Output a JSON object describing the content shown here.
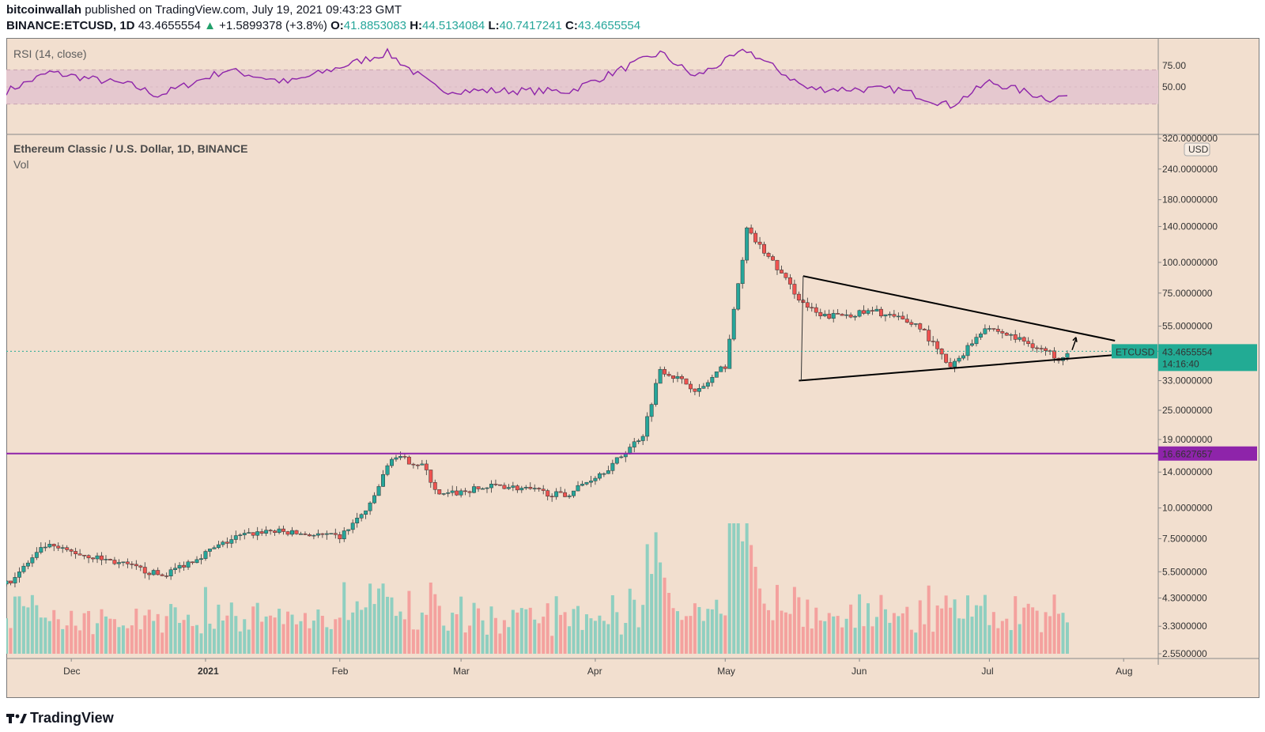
{
  "header": {
    "author": "bitcoinwallah",
    "published_text": "published on TradingView.com, July 19, 2021 09:43:23 GMT",
    "symbol": "BINANCE:ETCUSD, 1D",
    "last": "43.4655554",
    "change_arrow": "▲",
    "change": "+1.5899378 (+3.8%)",
    "o_label": "O:",
    "o": "41.8853083",
    "h_label": "H:",
    "h": "44.5134084",
    "l_label": "L:",
    "l": "40.7417241",
    "c_label": "C:",
    "c": "43.4655554"
  },
  "rsi_panel": {
    "title": "RSI (14, close)",
    "ticks": [
      "75.00",
      "50.00"
    ]
  },
  "price_panel": {
    "title": "Ethereum Classic / U.S. Dollar, 1D, BINANCE",
    "volume_label": "Vol",
    "currency": "USD",
    "symbol_tag": "ETCUSD",
    "last_price_label": "43.4655554",
    "countdown": "14:16:40",
    "support_level_label": "16.6627657",
    "y_ticks": [
      "320.0000000",
      "240.0000000",
      "180.0000000",
      "140.0000000",
      "100.0000000",
      "75.0000000",
      "55.0000000",
      "33.0000000",
      "25.0000000",
      "19.0000000",
      "14.0000000",
      "10.0000000",
      "7.5000000",
      "5.5000000",
      "4.3000000",
      "3.3000000",
      "2.5500000"
    ],
    "x_ticks": [
      "Dec",
      "2021",
      "Feb",
      "Mar",
      "Apr",
      "May",
      "Jun",
      "Jul",
      "Aug"
    ]
  },
  "colors": {
    "background": "#f2dfcf",
    "up": "#26a69a",
    "down": "#ef5350",
    "rsi_line": "#8e24aa",
    "rsi_band": "#e5c8cf",
    "support_line": "#8e24aa",
    "trendline": "#000000",
    "last_price": "#22ab94"
  },
  "footer": {
    "brand": "TradingView"
  },
  "chart_data": {
    "type": "candlestick",
    "title": "Ethereum Classic / U.S. Dollar, 1D, BINANCE",
    "y_scale": "log",
    "ylim": [
      2.5,
      320
    ],
    "x_range": [
      "2020-11-16",
      "2021-08-09"
    ],
    "anchors": [
      {
        "date": "2020-11-16",
        "close": 4.9
      },
      {
        "date": "2020-11-25",
        "close": 7.0
      },
      {
        "date": "2020-12-10",
        "close": 6.1
      },
      {
        "date": "2020-12-22",
        "close": 5.3
      },
      {
        "date": "2021-01-08",
        "close": 7.6
      },
      {
        "date": "2021-01-15",
        "close": 8.1
      },
      {
        "date": "2021-02-01",
        "close": 7.6
      },
      {
        "date": "2021-02-08",
        "close": 10.2
      },
      {
        "date": "2021-02-13",
        "close": 16.2
      },
      {
        "date": "2021-02-20",
        "close": 15.0
      },
      {
        "date": "2021-02-24",
        "close": 11.2
      },
      {
        "date": "2021-03-10",
        "close": 12.4
      },
      {
        "date": "2021-03-25",
        "close": 11.2
      },
      {
        "date": "2021-04-05",
        "close": 15.0
      },
      {
        "date": "2021-04-12",
        "close": 20.0
      },
      {
        "date": "2021-04-16",
        "close": 37.0
      },
      {
        "date": "2021-04-25",
        "close": 30.0
      },
      {
        "date": "2021-05-01",
        "close": 38.0
      },
      {
        "date": "2021-05-06",
        "close": 135.0
      },
      {
        "date": "2021-05-12",
        "close": 100.0
      },
      {
        "date": "2021-05-19",
        "close": 68.0
      },
      {
        "date": "2021-05-23",
        "close": 60.0
      },
      {
        "date": "2021-06-05",
        "close": 63.0
      },
      {
        "date": "2021-06-15",
        "close": 55.0
      },
      {
        "date": "2021-06-22",
        "close": 37.0
      },
      {
        "date": "2021-06-30",
        "close": 55.0
      },
      {
        "date": "2021-07-10",
        "close": 47.0
      },
      {
        "date": "2021-07-17",
        "close": 41.0
      },
      {
        "date": "2021-07-19",
        "close": 43.47
      }
    ],
    "volume_peaks": [
      {
        "date": "2021-04-16",
        "relative": 0.7
      },
      {
        "date": "2021-05-06",
        "relative": 1.0
      }
    ],
    "rsi": {
      "levels": [
        70,
        30
      ],
      "ticks": [
        75,
        50
      ],
      "anchors": [
        {
          "date": "2020-11-16",
          "value": 45
        },
        {
          "date": "2020-11-26",
          "value": 67
        },
        {
          "date": "2020-12-15",
          "value": 52
        },
        {
          "date": "2020-12-21",
          "value": 40
        },
        {
          "date": "2021-01-06",
          "value": 70
        },
        {
          "date": "2021-01-20",
          "value": 55
        },
        {
          "date": "2021-02-12",
          "value": 90
        },
        {
          "date": "2021-02-24",
          "value": 46
        },
        {
          "date": "2021-03-26",
          "value": 45
        },
        {
          "date": "2021-04-16",
          "value": 90
        },
        {
          "date": "2021-04-24",
          "value": 62
        },
        {
          "date": "2021-05-06",
          "value": 93
        },
        {
          "date": "2021-05-20",
          "value": 48
        },
        {
          "date": "2021-06-10",
          "value": 47
        },
        {
          "date": "2021-06-22",
          "value": 28
        },
        {
          "date": "2021-07-01",
          "value": 56
        },
        {
          "date": "2021-07-15",
          "value": 36
        },
        {
          "date": "2021-07-19",
          "value": 40
        }
      ]
    },
    "annotations": {
      "horizontal_level": 16.6627657,
      "triangle_upper": [
        {
          "date": "2021-05-19",
          "price": 88
        },
        {
          "date": "2021-07-30",
          "price": 48
        }
      ],
      "triangle_lower": [
        {
          "date": "2021-05-18",
          "price": 33
        },
        {
          "date": "2021-07-30",
          "price": 42
        }
      ],
      "arrow_hint": "up"
    }
  }
}
